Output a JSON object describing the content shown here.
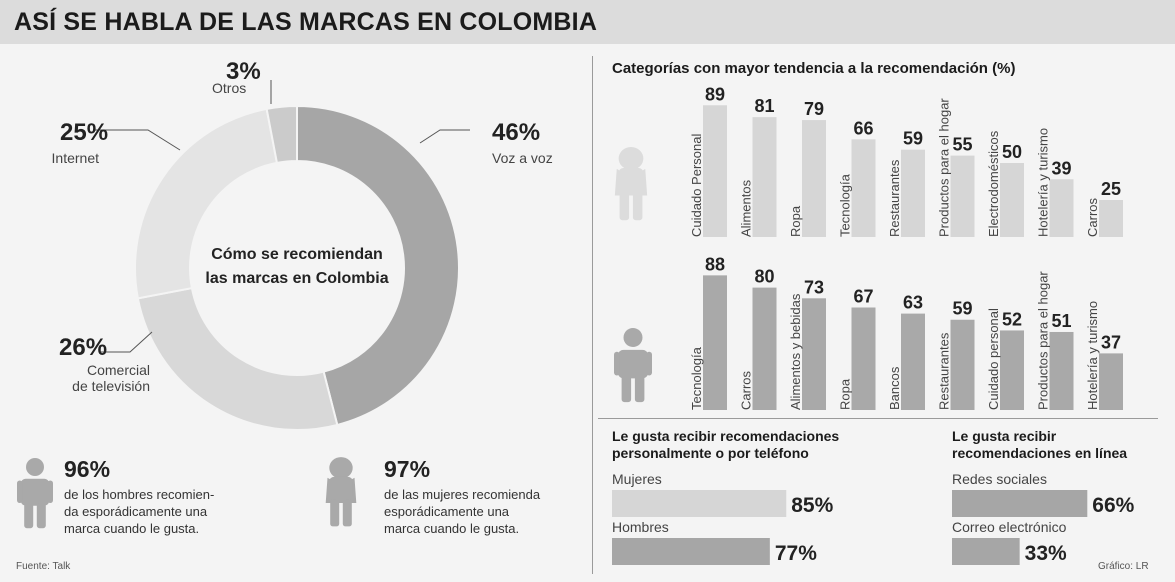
{
  "header": {
    "title": "ASÍ SE HABLA DE LAS MARCAS EN COLOMBIA"
  },
  "source": "Fuente: Talk",
  "credit": "Gráfico: LR",
  "stats": {
    "men": {
      "value": "96%",
      "lines": [
        "de los hombres recomien-",
        "da esporádicamente una",
        "marca cuando le gusta."
      ]
    },
    "women": {
      "value": "97%",
      "lines": [
        "de las mujeres recomienda",
        "esporádicamente una",
        "marca cuando le gusta."
      ]
    }
  },
  "chart_data": [
    {
      "type": "pie",
      "title": "Cómo se recomiendan las marcas en Colombia",
      "title_lines": [
        "Cómo se recomiendan",
        "las marcas en Colombia"
      ],
      "slices": [
        {
          "label": "Voz a voz",
          "lines": [
            "Voz a voz"
          ],
          "value": 46,
          "display": "46%",
          "color": "#a6a6a6"
        },
        {
          "label": "Comercial de televisión",
          "lines": [
            "Comercial",
            "de televisión"
          ],
          "value": 26,
          "display": "26%",
          "color": "#d8d8d8"
        },
        {
          "label": "Internet",
          "lines": [
            "Internet"
          ],
          "value": 25,
          "display": "25%",
          "color": "#e4e4e4"
        },
        {
          "label": "Otros",
          "lines": [
            "Otros"
          ],
          "value": 3,
          "display": "3%",
          "color": "#cbcbcb"
        }
      ]
    },
    {
      "type": "bar",
      "title": "Categorías con mayor tendencia a la recomendación (%)",
      "series": [
        {
          "group": "mujeres",
          "color": "#d6d6d6",
          "categories": [
            "Cuidado Personal",
            "Alimentos",
            "Ropa",
            "Tecnología",
            "Restaurantes",
            "Productos para el hogar",
            "Electrodomésticos",
            "Hotelería y turismo",
            "Carros"
          ],
          "values": [
            89,
            81,
            79,
            66,
            59,
            55,
            50,
            39,
            25
          ]
        },
        {
          "group": "hombres",
          "color": "#a9a9a9",
          "categories": [
            "Tecnología",
            "Carros",
            "Alimentos y bebidas",
            "Ropa",
            "Bancos",
            "Restaurantes",
            "Cuidado personal",
            "Productos para el hogar",
            "Hotelería y turismo"
          ],
          "values": [
            88,
            80,
            73,
            67,
            63,
            59,
            52,
            51,
            37
          ]
        }
      ]
    },
    {
      "type": "bar",
      "title": "Le gusta recibir recomendaciones personalmente o por teléfono",
      "title_lines": [
        "Le gusta recibir recomendaciones",
        "personalmente o por teléfono"
      ],
      "categories": [
        "Mujeres",
        "Hombres"
      ],
      "values": [
        85,
        77
      ],
      "display": [
        "85%",
        "77%"
      ],
      "colors": [
        "#d6d6d6",
        "#a6a6a6"
      ]
    },
    {
      "type": "bar",
      "title": "Le gusta recibir recomendaciones en línea",
      "title_lines": [
        "Le gusta recibir",
        "recomendaciones en línea"
      ],
      "categories": [
        "Redes sociales",
        "Correo electrónico"
      ],
      "values": [
        66,
        33
      ],
      "display": [
        "66%",
        "33%"
      ],
      "colors": [
        "#a6a6a6",
        "#a6a6a6"
      ]
    }
  ]
}
